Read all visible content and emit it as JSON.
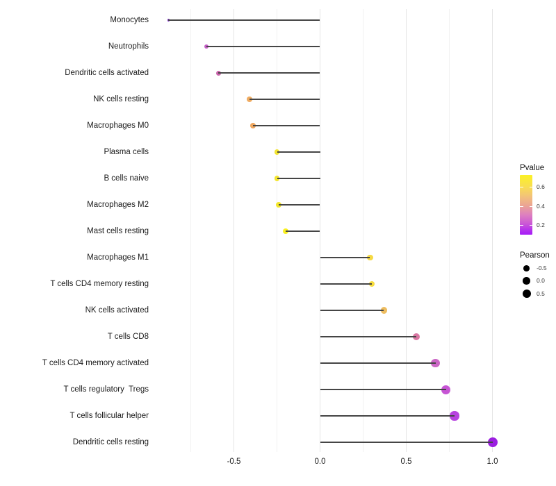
{
  "chart_data": {
    "type": "scatter",
    "variant": "lollipop",
    "title": "",
    "xlabel": "",
    "ylabel": "",
    "xlim": [
      -0.975,
      1.095
    ],
    "x_ticks": [
      -0.5,
      0.0,
      0.5,
      1.0
    ],
    "x_tick_labels": [
      "-0.5",
      "0.0",
      "0.5",
      "1.0"
    ],
    "grid": {
      "major": [
        -0.5,
        0.0,
        0.5,
        1.0
      ],
      "minor": [
        -0.75,
        -0.25,
        0.25,
        0.75
      ]
    },
    "categories": [
      "Monocytes",
      "Neutrophils",
      "Dendritic cells activated",
      "NK cells resting",
      "Macrophages M0",
      "Plasma cells",
      "B cells naive",
      "Macrophages M2",
      "Mast cells resting",
      "Macrophages M1",
      "T cells CD4 memory resting",
      "NK cells activated",
      "T cells CD8",
      "T cells CD4 memory activated",
      "T cells regulatory  Tregs",
      "T cells follicular helper",
      "Dendritic cells resting"
    ],
    "points": [
      {
        "label": "Monocytes",
        "pearson": -0.88,
        "dot_color": "#8530d6",
        "dot_r": 1.7
      },
      {
        "label": "Neutrophils",
        "pearson": -0.66,
        "dot_color": "#c45ec6",
        "dot_r": 3.3
      },
      {
        "label": "Dendritic cells activated",
        "pearson": -0.59,
        "dot_color": "#ca65ab",
        "dot_r": 3.5
      },
      {
        "label": "NK cells resting",
        "pearson": -0.41,
        "dot_color": "#f0ac62",
        "dot_r": 3.7
      },
      {
        "label": "Macrophages M0",
        "pearson": -0.39,
        "dot_color": "#efa75f",
        "dot_r": 3.8
      },
      {
        "label": "Plasma cells",
        "pearson": -0.25,
        "dot_color": "#f2e431",
        "dot_r": 3.9
      },
      {
        "label": "B cells naive",
        "pearson": -0.25,
        "dot_color": "#f3e52e",
        "dot_r": 3.9
      },
      {
        "label": "Macrophages M2",
        "pearson": -0.24,
        "dot_color": "#f4e72c",
        "dot_r": 3.9
      },
      {
        "label": "Mast cells resting",
        "pearson": -0.2,
        "dot_color": "#f9f022",
        "dot_r": 4.0
      },
      {
        "label": "Macrophages M1",
        "pearson": 0.29,
        "dot_color": "#f5d944",
        "dot_r": 4.3
      },
      {
        "label": "T cells CD4 memory resting",
        "pearson": 0.3,
        "dot_color": "#f6dc3e",
        "dot_r": 4.3
      },
      {
        "label": "NK cells activated",
        "pearson": 0.37,
        "dot_color": "#eebd60",
        "dot_r": 4.7
      },
      {
        "label": "T cells CD8",
        "pearson": 0.56,
        "dot_color": "#d877a2",
        "dot_r": 5.0
      },
      {
        "label": "T cells CD4 memory activated",
        "pearson": 0.67,
        "dot_color": "#cb67c5",
        "dot_r": 6.3
      },
      {
        "label": "T cells regulatory  Tregs",
        "pearson": 0.73,
        "dot_color": "#c654d4",
        "dot_r": 6.5
      },
      {
        "label": "T cells follicular helper",
        "pearson": 0.78,
        "dot_color": "#b743df",
        "dot_r": 6.6
      },
      {
        "label": "Dendritic cells resting",
        "pearson": 1.0,
        "dot_color": "#9b1fe0",
        "dot_r": 7.0
      }
    ],
    "legends": {
      "pvalue": {
        "title": "Pvalue",
        "tick_labels": [
          "0.6",
          "0.4",
          "0.2"
        ],
        "tick_values": [
          0.6,
          0.4,
          0.2
        ],
        "bar_value_range": [
          0.73,
          0.1
        ],
        "gradient_stops": [
          {
            "pos": 0.0,
            "color": "#fbf125"
          },
          {
            "pos": 0.21,
            "color": "#f8dc55"
          },
          {
            "pos": 0.37,
            "color": "#f2c07c"
          },
          {
            "pos": 0.51,
            "color": "#eba494"
          },
          {
            "pos": 0.67,
            "color": "#dd7fc0"
          },
          {
            "pos": 0.81,
            "color": "#cc5ad4"
          },
          {
            "pos": 0.91,
            "color": "#b736ea"
          },
          {
            "pos": 1.0,
            "color": "#a51bf7"
          }
        ]
      },
      "pearson": {
        "title": "Pearson",
        "items": [
          {
            "label": "-0.5",
            "r": 4.3
          },
          {
            "label": "0.0",
            "r": 5.3
          },
          {
            "label": "0.5",
            "r": 6.0
          }
        ]
      }
    }
  }
}
